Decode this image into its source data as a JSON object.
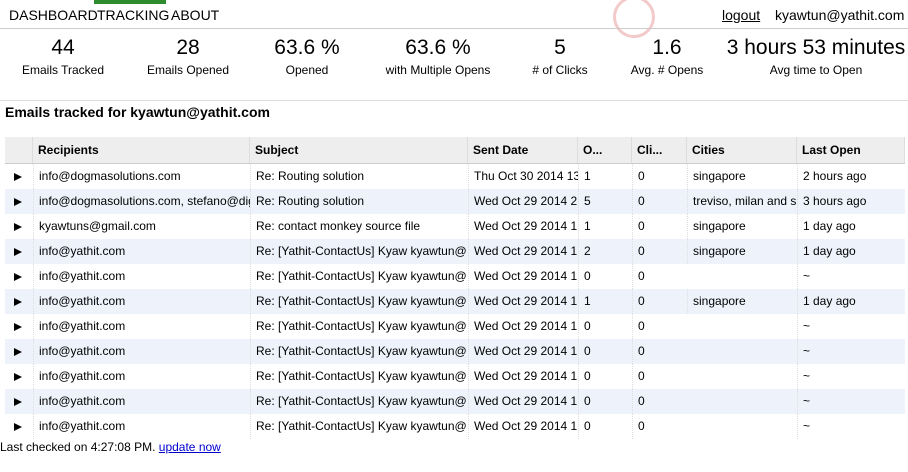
{
  "nav": {
    "items": [
      "DASHBOARD",
      "TRACKING",
      "ABOUT"
    ],
    "logout": "logout",
    "user": "kyawtun@yathit.com"
  },
  "stats": [
    {
      "value": 44,
      "label": "Emails Tracked"
    },
    {
      "value": 28,
      "label": "Emails Opened"
    },
    {
      "value": "63.6 %",
      "label": "Opened"
    },
    {
      "value": "63.6 %",
      "label": "with Multiple Opens"
    },
    {
      "value": 5,
      "label": "# of Clicks"
    },
    {
      "value": 1.6,
      "label": "Avg. # Opens"
    },
    {
      "value": "3 hours 53 minutes",
      "label": "Avg time to Open"
    }
  ],
  "heading": "Emails tracked for kyawtun@yathit.com",
  "table": {
    "header": [
      "Recipients",
      "Subject",
      "Sent Date",
      "O...",
      "Cli...",
      "Cities",
      "Last Open"
    ],
    "rows": [
      [
        "info@dogmasolutions.com",
        "Re: Routing solution",
        "Thu Oct 30 2014 13",
        1,
        0,
        "singapore",
        "2 hours ago"
      ],
      [
        "info@dogmasolutions.com, stefano@dig",
        "Re: Routing solution",
        "Wed Oct 29 2014 2",
        5,
        0,
        "treviso, milan and s",
        "3 hours ago"
      ],
      [
        "kyawtuns@gmail.com",
        "Re: contact monkey source file",
        "Wed Oct 29 2014 1",
        1,
        0,
        "singapore",
        "1 day ago"
      ],
      [
        "info@yathit.com",
        "Re: [Yathit-ContactUs] Kyaw kyawtun@",
        "Wed Oct 29 2014 1",
        2,
        0,
        "singapore",
        "1 day ago"
      ],
      [
        "info@yathit.com",
        "Re: [Yathit-ContactUs] Kyaw kyawtun@",
        "Wed Oct 29 2014 1",
        0,
        0,
        null,
        "~"
      ],
      [
        "info@yathit.com",
        "Re: [Yathit-ContactUs] Kyaw kyawtun@",
        "Wed Oct 29 2014 1",
        1,
        0,
        "singapore",
        "1 day ago"
      ],
      [
        "info@yathit.com",
        "Re: [Yathit-ContactUs] Kyaw kyawtun@",
        "Wed Oct 29 2014 1",
        0,
        0,
        null,
        "~"
      ],
      [
        "info@yathit.com",
        "Re: [Yathit-ContactUs] Kyaw kyawtun@",
        "Wed Oct 29 2014 1",
        0,
        0,
        null,
        "~"
      ],
      [
        "info@yathit.com",
        "Re: [Yathit-ContactUs] Kyaw kyawtun@",
        "Wed Oct 29 2014 1",
        0,
        0,
        null,
        "~"
      ],
      [
        "info@yathit.com",
        "Re: [Yathit-ContactUs] Kyaw kyawtun@",
        "Wed Oct 29 2014 1",
        0,
        0,
        null,
        "~"
      ],
      [
        "info@yathit.com",
        "Re: [Yathit-ContactUs] Kyaw kyawtun@",
        "Wed Oct 29 2014 1",
        0,
        0,
        null,
        "~"
      ]
    ]
  },
  "footer": {
    "text": "Last checked on 4:27:08 PM.",
    "link": "update now"
  }
}
